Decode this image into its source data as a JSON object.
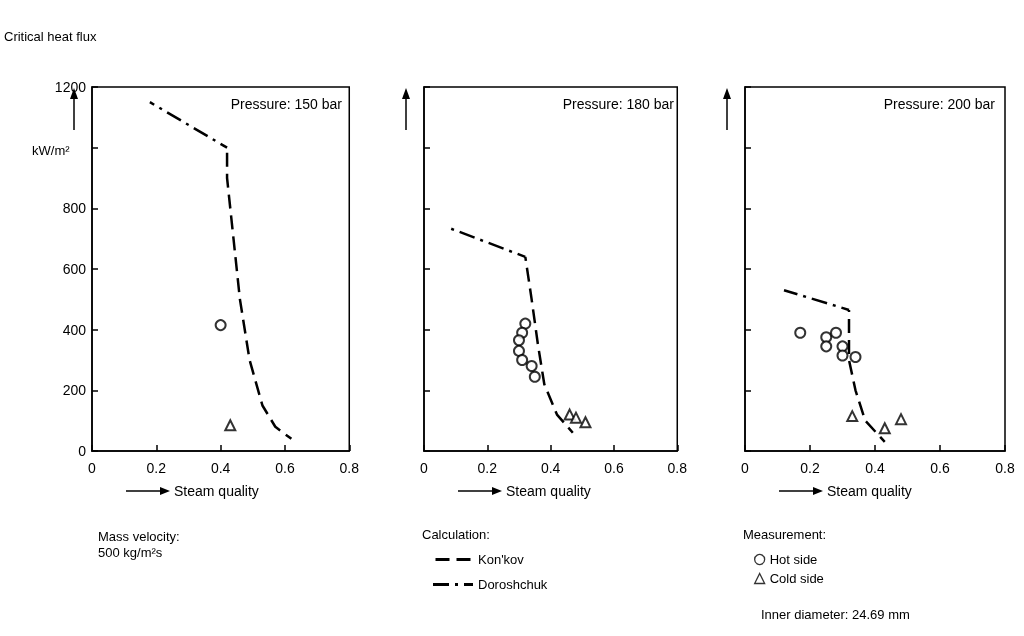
{
  "chart_data": [
    {
      "type": "line",
      "title": "Pressure: 150 bar",
      "xlabel": "Steam quality",
      "ylabel": "Critical heat flux",
      "annotations": [
        "kW/m²",
        "Mass velocity:\n500 kg/m²s"
      ],
      "xlim": [
        0,
        0.8
      ],
      "xticks": [
        0,
        0.2,
        0.4,
        0.6,
        0.8
      ],
      "ylim": [
        0,
        1200
      ],
      "yticks": [
        0,
        200,
        400,
        600,
        800,
        {
          "value": 1000,
          "label": null
        },
        1200
      ],
      "grid": false,
      "legend": false,
      "series": [
        {
          "color": "#000000",
          "line_style": "dashed",
          "marker": "none",
          "x": [
            0.42,
            0.42,
            0.44,
            0.46,
            0.49,
            0.53,
            0.57,
            0.62
          ],
          "values": [
            1000,
            900,
            700,
            500,
            300,
            150,
            80,
            40
          ]
        },
        {
          "color": "#000000",
          "line_style": "dashdot",
          "marker": "none",
          "x": [
            0.18,
            0.42
          ],
          "values": [
            1150,
            1000
          ]
        },
        {
          "color": "#000000",
          "type": "scatter",
          "marker": "circle",
          "x": [
            0.4
          ],
          "values": [
            415
          ]
        },
        {
          "color": "#000000",
          "type": "scatter",
          "marker": "triangle",
          "x": [
            0.43
          ],
          "values": [
            85
          ]
        }
      ]
    },
    {
      "type": "line",
      "title": "Pressure: 180 bar",
      "xlabel": "Steam quality",
      "legend_title": "Calculation:",
      "xlim": [
        0,
        0.8
      ],
      "xticks": [
        0,
        0.2,
        0.4,
        0.6,
        0.8
      ],
      "ylim": [
        0,
        1200
      ],
      "yticks": [
        0,
        200,
        400,
        600,
        800,
        1000,
        1200
      ],
      "tick_labels": "x",
      "grid": false,
      "legend": "bottom left",
      "series": [
        {
          "name": "Kon'kov",
          "color": "#000000",
          "line_style": "dashed",
          "marker": "none",
          "x": [
            0.32,
            0.34,
            0.36,
            0.38,
            0.42,
            0.47
          ],
          "values": [
            640,
            500,
            350,
            220,
            120,
            60
          ]
        },
        {
          "name": "Doroshchuk",
          "color": "#000000",
          "line_style": "dashdot",
          "marker": "none",
          "x": [
            0.08,
            0.32
          ],
          "values": [
            735,
            640
          ]
        },
        {
          "color": "#000000",
          "type": "scatter",
          "marker": "circle",
          "x": [
            0.32,
            0.31,
            0.3,
            0.3,
            0.31,
            0.34,
            0.35
          ],
          "values": [
            420,
            390,
            365,
            330,
            300,
            280,
            245
          ]
        },
        {
          "color": "#000000",
          "type": "scatter",
          "marker": "triangle",
          "x": [
            0.46,
            0.48,
            0.51
          ],
          "values": [
            120,
            110,
            95
          ]
        }
      ]
    },
    {
      "type": "line",
      "title": "Pressure: 200 bar",
      "xlabel": "Steam quality",
      "legend_title": "Measurement:",
      "annotations": [
        "Inner diameter: 24.69 mm"
      ],
      "xlim": [
        0,
        0.8
      ],
      "xticks": [
        0,
        0.2,
        0.4,
        0.6,
        0.8
      ],
      "ylim": [
        0,
        1200
      ],
      "yticks": [
        0,
        200,
        400,
        600,
        800,
        1000,
        1200
      ],
      "tick_labels": "x",
      "grid": false,
      "legend": "bottom left",
      "series": [
        {
          "color": "#000000",
          "line_style": "dashed",
          "marker": "none",
          "x": [
            0.32,
            0.32,
            0.34,
            0.37,
            0.43
          ],
          "values": [
            465,
            300,
            200,
            100,
            30
          ]
        },
        {
          "color": "#000000",
          "line_style": "dashdot",
          "marker": "none",
          "x": [
            0.12,
            0.32
          ],
          "values": [
            530,
            465
          ]
        },
        {
          "name": "Hot side",
          "color": "#000000",
          "type": "scatter",
          "marker": "circle",
          "x": [
            0.17,
            0.25,
            0.25,
            0.28,
            0.3,
            0.3,
            0.34
          ],
          "values": [
            390,
            375,
            345,
            390,
            345,
            315,
            310
          ]
        },
        {
          "name": "Cold side",
          "color": "#000000",
          "type": "scatter",
          "marker": "triangle",
          "x": [
            0.33,
            0.43,
            0.48
          ],
          "values": [
            115,
            75,
            105
          ]
        }
      ]
    }
  ]
}
